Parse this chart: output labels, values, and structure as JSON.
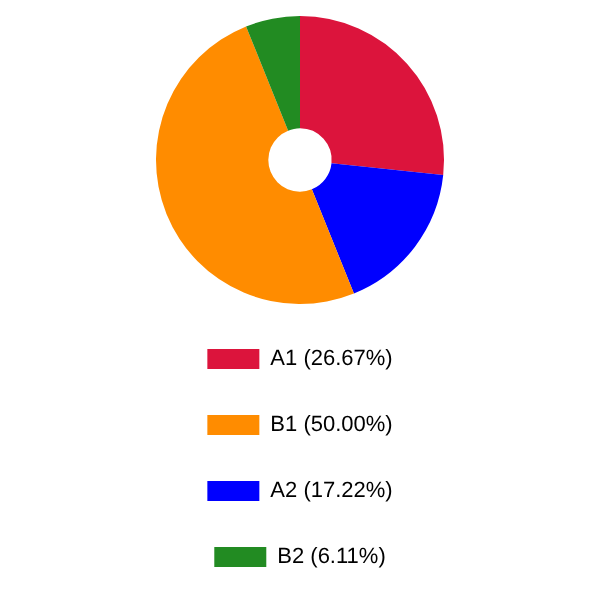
{
  "chart_data": {
    "type": "donut",
    "categories": [
      "A1 (26.67%)",
      "A2 (17.22%)",
      "B1 (50.00%)",
      "B2 (6.11%)"
    ],
    "values": [
      26.67,
      17.22,
      50.0,
      6.11
    ],
    "colors": [
      "#dc143c",
      "#0000ff",
      "#ff8c00",
      "#228b22"
    ],
    "legend": "bottom"
  }
}
